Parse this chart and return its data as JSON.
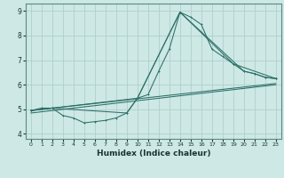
{
  "xlabel": "Humidex (Indice chaleur)",
  "bg_color": "#cde8e5",
  "grid_color": "#b0cfcc",
  "line_color": "#2d7068",
  "spine_color": "#5a8a82",
  "xlim": [
    -0.5,
    23.5
  ],
  "ylim": [
    3.8,
    9.3
  ],
  "yticks": [
    4,
    5,
    6,
    7,
    8,
    9
  ],
  "xticks": [
    0,
    1,
    2,
    3,
    4,
    5,
    6,
    7,
    8,
    9,
    10,
    11,
    12,
    13,
    14,
    15,
    16,
    17,
    18,
    19,
    20,
    21,
    22,
    23
  ],
  "line1_x": [
    0,
    1,
    2,
    3,
    4,
    5,
    6,
    7,
    8,
    9,
    10,
    11,
    12,
    13,
    14,
    15,
    16,
    17,
    18,
    19,
    20,
    21,
    22,
    23
  ],
  "line1_y": [
    4.95,
    5.05,
    5.05,
    4.75,
    4.65,
    4.45,
    4.5,
    4.55,
    4.65,
    4.85,
    5.45,
    5.6,
    6.55,
    7.45,
    8.95,
    8.75,
    8.45,
    7.45,
    7.15,
    6.85,
    6.55,
    6.45,
    6.3,
    6.25
  ],
  "line2_x": [
    0,
    2,
    10,
    14,
    19,
    23
  ],
  "line2_y": [
    4.95,
    5.05,
    5.45,
    8.95,
    6.85,
    6.25
  ],
  "line3_x": [
    0,
    2,
    9,
    10,
    14,
    20,
    21,
    22,
    23
  ],
  "line3_y": [
    4.95,
    5.05,
    4.85,
    5.45,
    8.95,
    6.55,
    6.45,
    6.3,
    6.25
  ],
  "line4_x": [
    0,
    23
  ],
  "line4_y": [
    4.95,
    6.05
  ],
  "line5_x": [
    0,
    23
  ],
  "line5_y": [
    4.85,
    6.0
  ]
}
